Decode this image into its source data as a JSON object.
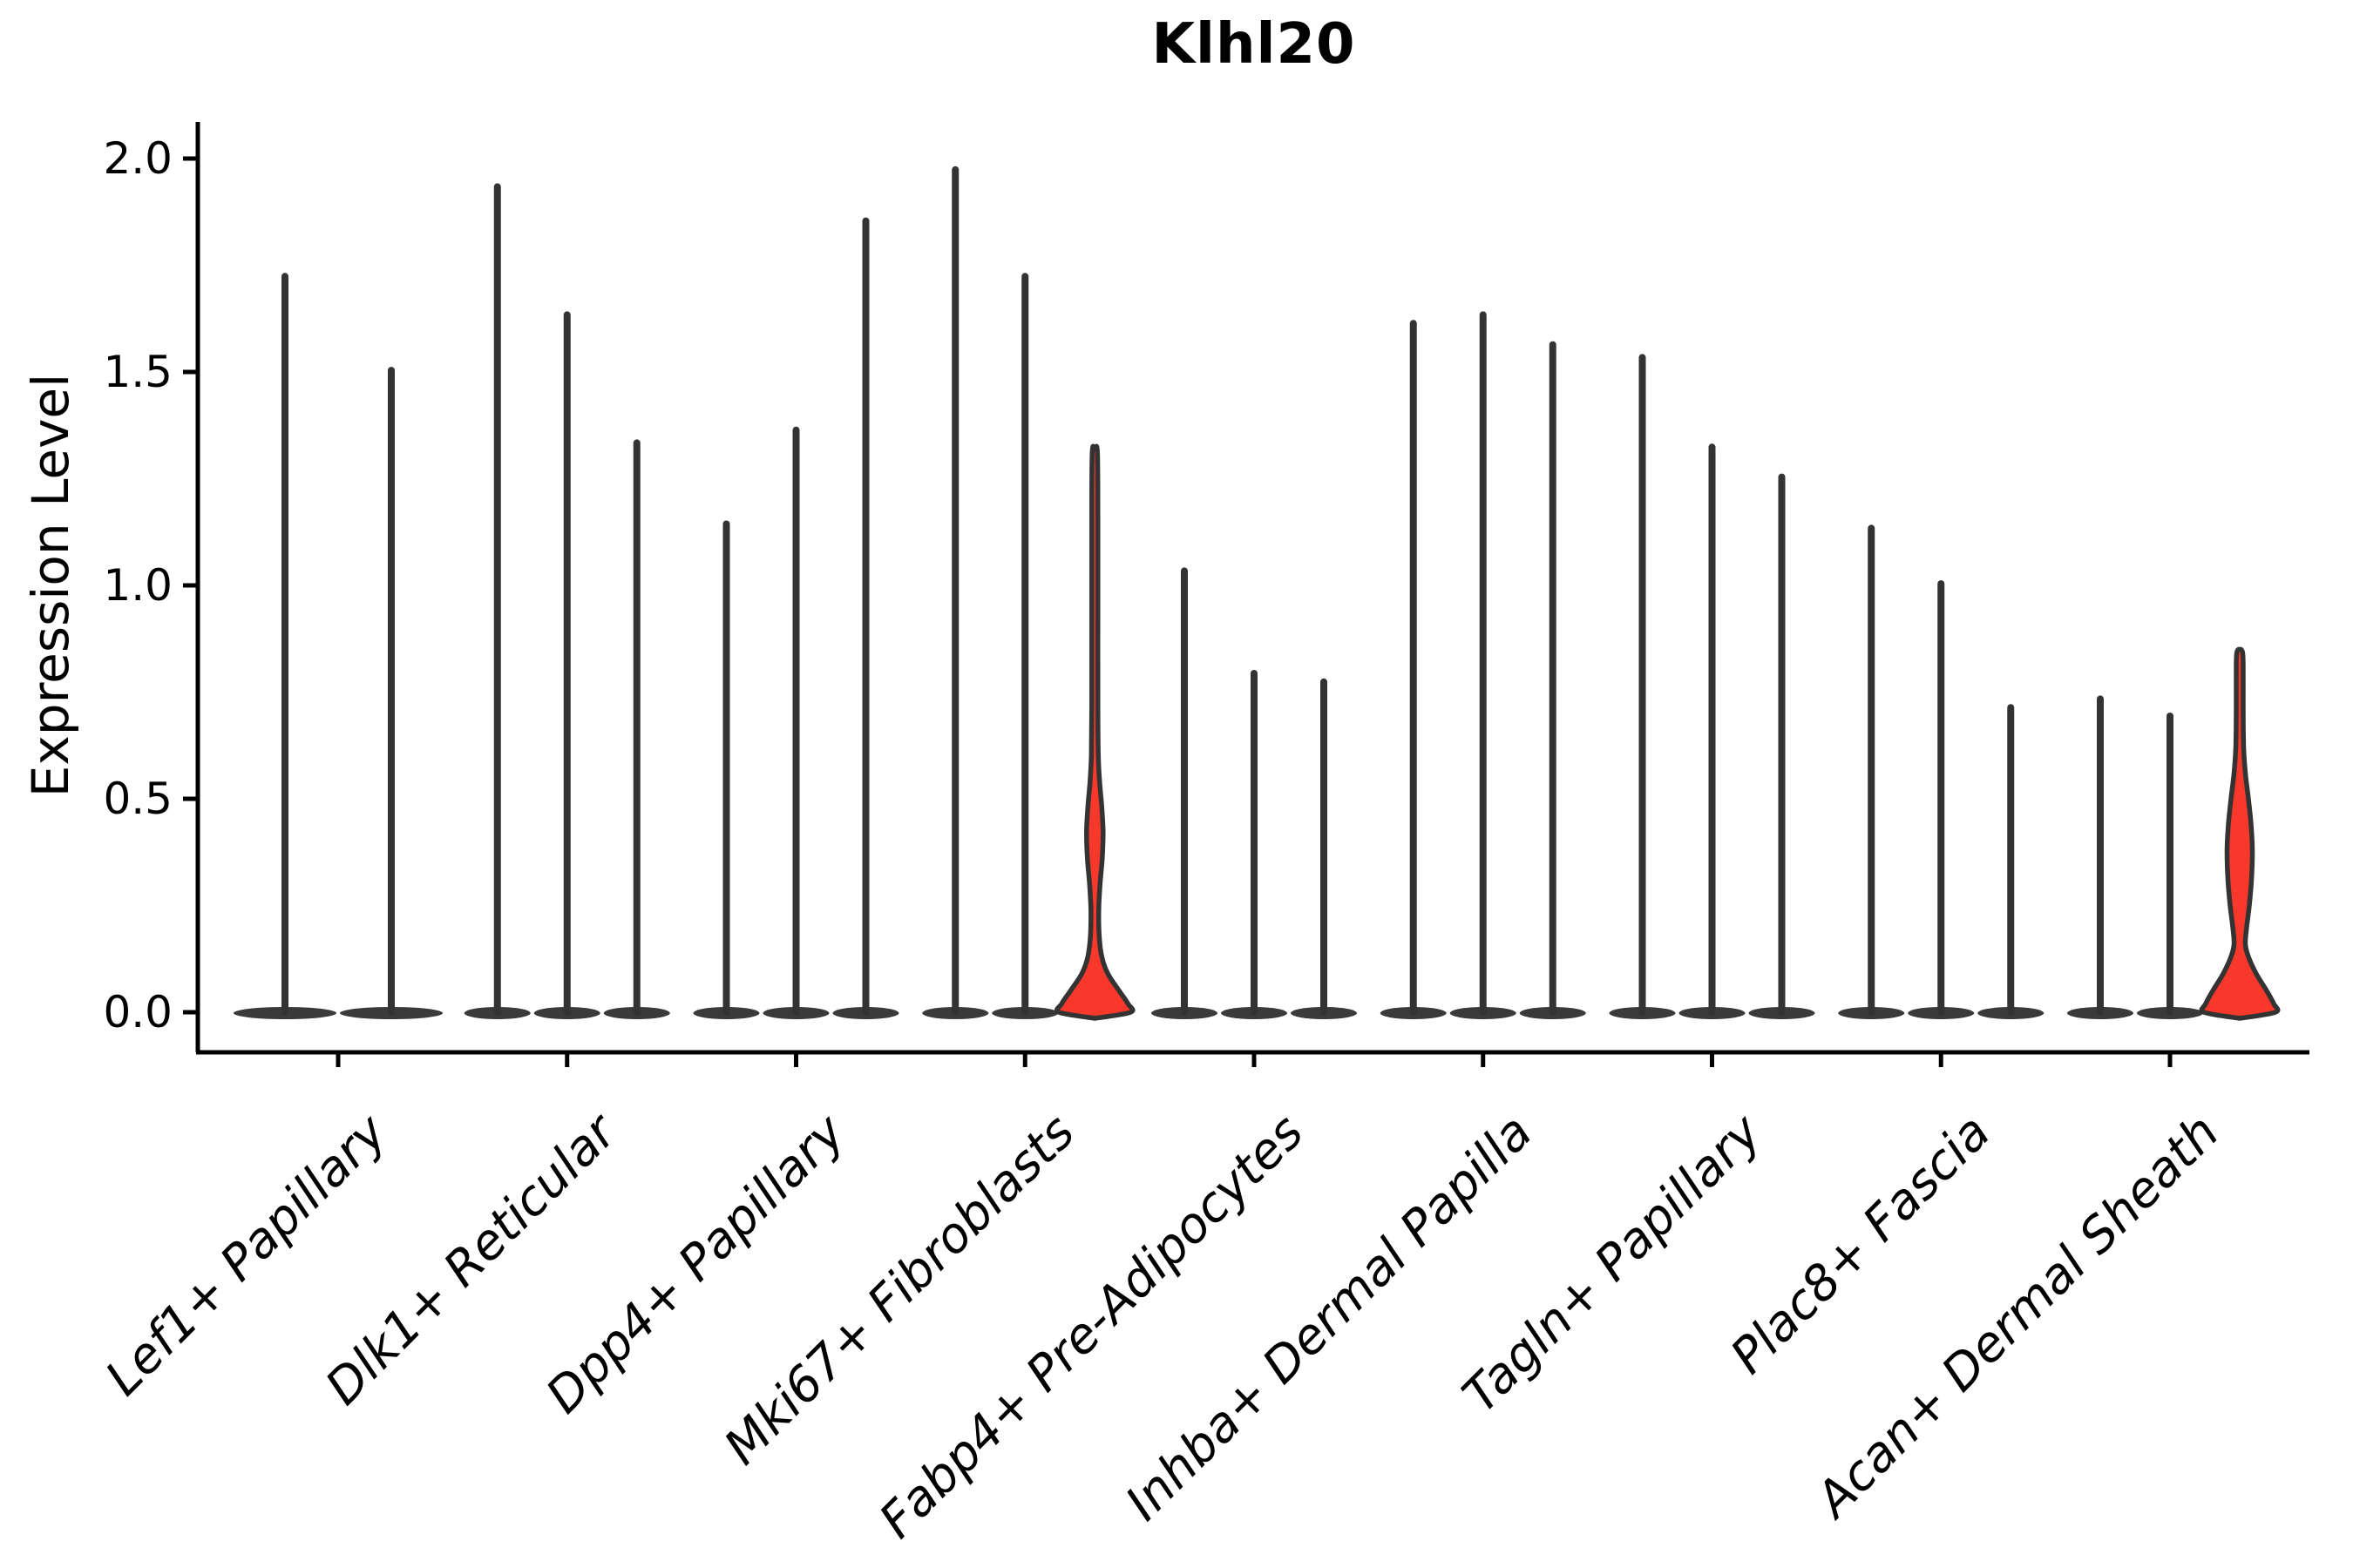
{
  "chart_data": {
    "type": "violin",
    "title": "Klhl20",
    "ylabel": "Expression Level",
    "xlabel": "",
    "ylim": [
      0,
      2.05
    ],
    "yticks": [
      2.0,
      1.5,
      1.0,
      0.5,
      0.0
    ],
    "ytick_labels": [
      "2.0",
      "1.5",
      "1.0",
      "0.5",
      "0.0"
    ],
    "legend": "none",
    "grid": false,
    "categories": [
      "Lef1+ Papillary",
      "Dlk1+ Reticular",
      "Dpp4+ Papillary",
      "Mki67+ Fibroblasts",
      "Fabp4+ Pre-Adipocytes",
      "Inhba+ Dermal Papilla",
      "Tagln+ Papillary",
      "Plac8+ Fascia",
      "Acan+ Dermal Sheath"
    ],
    "groups": [
      {
        "category": "Lef1+ Papillary",
        "violin_max": [
          1.73,
          1.51
        ],
        "highlight_index": -1
      },
      {
        "category": "Dlk1+ Reticular",
        "violin_max": [
          1.94,
          1.64,
          1.34
        ],
        "highlight_index": -1
      },
      {
        "category": "Dpp4+ Papillary",
        "violin_max": [
          1.15,
          1.37,
          1.86
        ],
        "highlight_index": -1
      },
      {
        "category": "Mki67+ Fibroblasts",
        "violin_max": [
          1.98,
          1.73,
          1.31
        ],
        "highlight_index": 2,
        "highlight_profile": "mki67"
      },
      {
        "category": "Fabp4+ Pre-Adipocytes",
        "violin_max": [
          1.04,
          0.8,
          0.78
        ],
        "highlight_index": -1
      },
      {
        "category": "Inhba+ Dermal Papilla",
        "violin_max": [
          1.62,
          1.64,
          1.57
        ],
        "highlight_index": -1
      },
      {
        "category": "Tagln+ Papillary",
        "violin_max": [
          1.54,
          1.33,
          1.26
        ],
        "highlight_index": -1
      },
      {
        "category": "Plac8+ Fascia",
        "violin_max": [
          1.14,
          1.01,
          0.72
        ],
        "highlight_index": -1
      },
      {
        "category": "Acan+ Dermal Sheath",
        "violin_max": [
          0.74,
          0.7,
          0.84
        ],
        "highlight_index": 2,
        "highlight_profile": "acan"
      }
    ],
    "highlight_profiles": {
      "mki67": [
        [
          0,
          41
        ],
        [
          0.02,
          38
        ],
        [
          0.05,
          28
        ],
        [
          0.09,
          15
        ],
        [
          0.13,
          8
        ],
        [
          0.18,
          5
        ],
        [
          0.24,
          4.5
        ],
        [
          0.3,
          6
        ],
        [
          0.36,
          8.5
        ],
        [
          0.42,
          9.5
        ],
        [
          0.48,
          8
        ],
        [
          0.54,
          5.5
        ],
        [
          0.6,
          4
        ],
        [
          0.72,
          3.5
        ],
        [
          0.95,
          3.5
        ],
        [
          1.15,
          3.5
        ],
        [
          1.31,
          3
        ]
      ],
      "acan": [
        [
          0,
          41
        ],
        [
          0.02,
          39
        ],
        [
          0.05,
          31
        ],
        [
          0.09,
          19
        ],
        [
          0.13,
          10
        ],
        [
          0.16,
          6.5
        ],
        [
          0.2,
          8
        ],
        [
          0.25,
          11
        ],
        [
          0.31,
          13.5
        ],
        [
          0.38,
          14.5
        ],
        [
          0.44,
          13
        ],
        [
          0.5,
          10
        ],
        [
          0.56,
          6.5
        ],
        [
          0.62,
          4.5
        ],
        [
          0.7,
          4
        ],
        [
          0.78,
          4
        ],
        [
          0.84,
          3.5
        ]
      ]
    },
    "colors": {
      "outline": "#333333",
      "base_fill": "#3a3a3a",
      "highlight_fill": "#F9382C",
      "axis": "#000000",
      "background": "#ffffff",
      "text": "#000000"
    }
  }
}
